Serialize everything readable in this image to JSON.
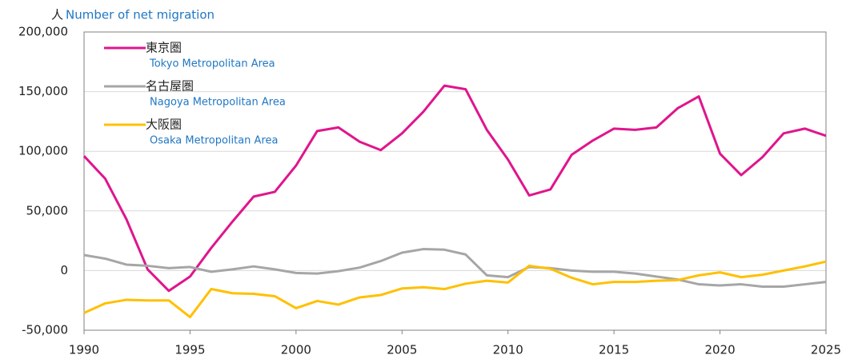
{
  "chart_data": {
    "type": "line",
    "y_label_unit": "人",
    "y_label": "Number of net migration",
    "x": [
      1990,
      1991,
      1992,
      1993,
      1994,
      1995,
      1996,
      1997,
      1998,
      1999,
      2000,
      2001,
      2002,
      2003,
      2004,
      2005,
      2006,
      2007,
      2008,
      2009,
      2010,
      2011,
      2012,
      2013,
      2014,
      2015,
      2016,
      2017,
      2018,
      2019,
      2020,
      2021,
      2022,
      2023,
      2024,
      2025
    ],
    "xlim": [
      1990,
      2025
    ],
    "xticks": [
      1990,
      1995,
      2000,
      2005,
      2010,
      2015,
      2020,
      2025
    ],
    "ylim": [
      -50000,
      200000
    ],
    "yticks": [
      {
        "value": -50000,
        "label": "-50,000"
      },
      0,
      {
        "value": 50000,
        "label": "50,000"
      },
      {
        "value": 100000,
        "label": "100,000"
      },
      {
        "value": 150000,
        "label": "150,000"
      },
      {
        "value": 200000,
        "label": "200,000"
      }
    ],
    "grid": true,
    "legend": "upper left",
    "series": [
      {
        "name": "東京圏",
        "name_en": "Tokyo Metropolitan Area",
        "color": "#e0158c",
        "values": [
          96000,
          77000,
          43000,
          1000,
          -17000,
          -5000,
          19000,
          41000,
          62000,
          66000,
          88000,
          117000,
          120000,
          108000,
          101000,
          115000,
          133000,
          155000,
          152000,
          118000,
          93000,
          63000,
          68000,
          97000,
          109000,
          119000,
          118000,
          120000,
          136000,
          146000,
          98000,
          80000,
          95000,
          115000,
          119000,
          113000
        ]
      },
      {
        "name": "名古屋圏",
        "name_en": "Nagoya Metropolitan Area",
        "color": "#a6a6a6",
        "values": [
          13000,
          10000,
          5000,
          4000,
          2000,
          3000,
          -1000,
          1000,
          3500,
          1000,
          -2000,
          -2500,
          -500,
          2500,
          8000,
          15000,
          18000,
          17500,
          13500,
          -4000,
          -5500,
          3000,
          2000,
          0,
          -1000,
          -1000,
          -2500,
          -5000,
          -7500,
          -11500,
          -12500,
          -11500,
          -13500,
          -13500,
          -11500,
          -9500
        ]
      },
      {
        "name": "大阪圏",
        "name_en": "Osaka Metropolitan Area",
        "color": "#ffc000",
        "values": [
          -35500,
          -27500,
          -24500,
          -25000,
          -25000,
          -39000,
          -15500,
          -19000,
          -19500,
          -21500,
          -31500,
          -25500,
          -28500,
          -22500,
          -20500,
          -15000,
          -14000,
          -15500,
          -11000,
          -8500,
          -10000,
          4000,
          1500,
          -6000,
          -11500,
          -9500,
          -9500,
          -8500,
          -8000,
          -4000,
          -1500,
          -5500,
          -3500,
          0,
          3500,
          7500
        ]
      }
    ]
  }
}
